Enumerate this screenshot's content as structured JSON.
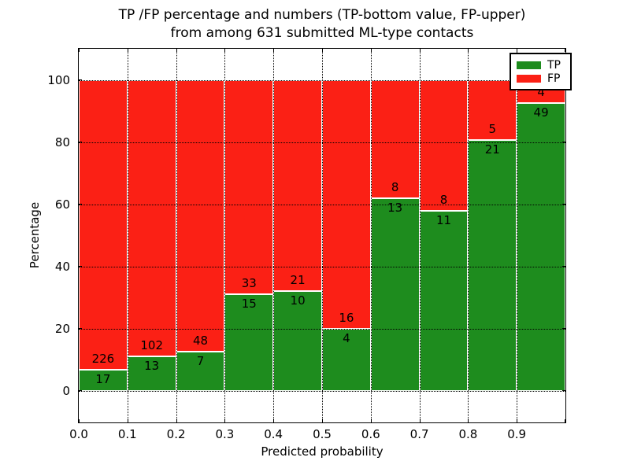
{
  "title": {
    "line1": "TP /FP percentage and numbers (TP-bottom value, FP-upper)",
    "line2": "from among 631 submitted ML-type contacts"
  },
  "axes": {
    "xlabel": "Predicted probability",
    "ylabel": "Percentage",
    "xtick_labels": [
      "0.0",
      "0.1",
      "0.2",
      "0.3",
      "0.4",
      "0.5",
      "0.6",
      "0.7",
      "0.8",
      "0.9"
    ],
    "ytick_values": [
      0,
      20,
      40,
      60,
      80,
      100
    ],
    "ytick_labels": [
      "0",
      "20",
      "40",
      "60",
      "80",
      "100"
    ],
    "xlim": [
      0.0,
      1.0
    ],
    "ylim": [
      -10,
      110
    ],
    "grid": "dotted black, drawn above bars"
  },
  "legend": {
    "position": "upper right",
    "items": [
      {
        "label": "TP",
        "color": "#1E8C1E"
      },
      {
        "label": "FP",
        "color": "#FB2015"
      }
    ]
  },
  "chart_data": {
    "type": "bar",
    "stacked": true,
    "normalized": "each bin scaled to 100%",
    "title": "TP /FP percentage and numbers (TP-bottom value, FP-upper) from among 631 submitted ML-type contacts",
    "xlabel": "Predicted probability",
    "ylabel": "Percentage",
    "total_contacts": 631,
    "bin_width": 0.1,
    "categories": [
      "0.0-0.1",
      "0.1-0.2",
      "0.2-0.3",
      "0.3-0.4",
      "0.4-0.5",
      "0.5-0.6",
      "0.6-0.7",
      "0.7-0.8",
      "0.8-0.9",
      "0.9-1.0"
    ],
    "bin_starts": [
      0.0,
      0.1,
      0.2,
      0.3,
      0.4,
      0.5,
      0.6,
      0.7,
      0.8,
      0.9
    ],
    "series": [
      {
        "name": "TP",
        "color": "#1E8C1E",
        "counts": [
          17,
          13,
          7,
          15,
          10,
          4,
          13,
          11,
          21,
          49
        ]
      },
      {
        "name": "FP",
        "color": "#FB2015",
        "counts": [
          226,
          102,
          48,
          33,
          21,
          16,
          8,
          8,
          5,
          4
        ]
      }
    ],
    "tp_percent_of_bin": [
      7.0,
      11.3,
      12.73,
      31.25,
      32.26,
      20.0,
      61.9,
      57.89,
      80.77,
      92.45
    ],
    "bar_edge_color": "#FFFFFF",
    "label_note": "TP count printed below segment boundary, FP count printed above it"
  }
}
